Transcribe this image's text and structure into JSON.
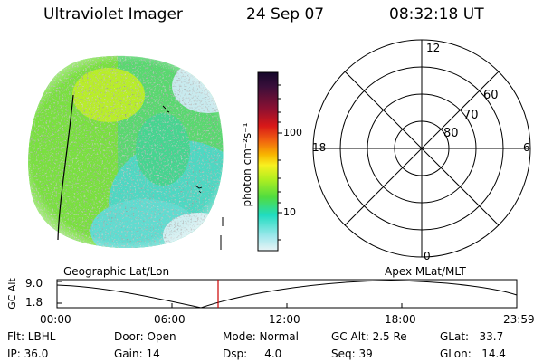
{
  "header": {
    "instrument": "Ultraviolet Imager",
    "date": "24 Sep 07",
    "time": "08:32:18 UT"
  },
  "colorbar": {
    "unit_label": "photon cm⁻²s⁻¹",
    "ticks": [
      "100",
      "10"
    ],
    "colors": [
      "#1a0a2a",
      "#3a0f3a",
      "#6a0f3a",
      "#a01030",
      "#d01818",
      "#f05a10",
      "#f8b000",
      "#f8f020",
      "#d0f020",
      "#80e020",
      "#30d860",
      "#20d8c0",
      "#9ae6ea",
      "#d8f0f2"
    ]
  },
  "polar_plot": {
    "mlt_labels": {
      "top": "12",
      "left": "18",
      "right": "6",
      "bottom": "0"
    },
    "lat_labels": [
      "80",
      "70",
      "60"
    ]
  },
  "timeline": {
    "left_label": "Geographic Lat/Lon",
    "right_label": "Apex MLat/MLT",
    "axis_label": "GC Alt",
    "y_ticks": [
      "9.0",
      "1.8"
    ],
    "x_ticks": [
      "00:00",
      "06:00",
      "12:00",
      "18:00",
      "23:59"
    ],
    "marker_color": "#cc0000"
  },
  "info": {
    "flt": "Flt: LBHL",
    "ip": "IP: 36.0",
    "door": "Door: Open",
    "gain": "Gain: 14",
    "mode": "Mode: Normal",
    "dsp": "Dsp:     4.0",
    "gcalt": "GC Alt: 2.5 Re",
    "seq": "Seq: 39",
    "glat": "GLat:   33.7",
    "glon": "GLon:   14.4"
  }
}
